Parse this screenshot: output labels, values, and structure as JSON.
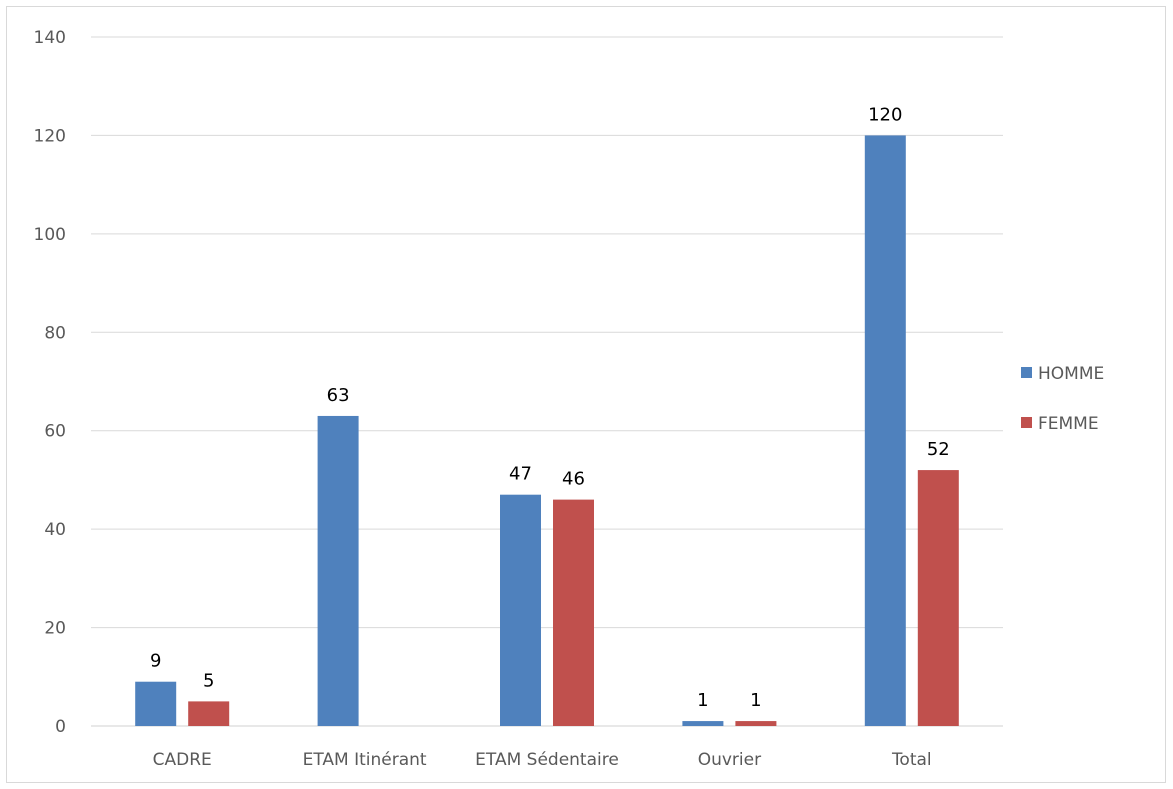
{
  "chart_data": {
    "type": "bar",
    "categories": [
      "CADRE",
      "ETAM Itinérant",
      "ETAM Sédentaire",
      "Ouvrier",
      "Total"
    ],
    "series": [
      {
        "name": "HOMME",
        "color": "#4f81bd",
        "values": [
          9,
          63,
          47,
          1,
          120
        ],
        "labels": [
          "9",
          "63",
          "47",
          "1",
          "120"
        ]
      },
      {
        "name": "FEMME",
        "color": "#c0504d",
        "values": [
          5,
          null,
          46,
          1,
          52
        ],
        "labels": [
          "5",
          "",
          "46",
          "1",
          "52"
        ]
      }
    ],
    "yticks": [
      "0",
      "20",
      "40",
      "60",
      "80",
      "100",
      "120",
      "140"
    ],
    "ylim": [
      0,
      140
    ],
    "grid": true,
    "legend_position": "right"
  }
}
